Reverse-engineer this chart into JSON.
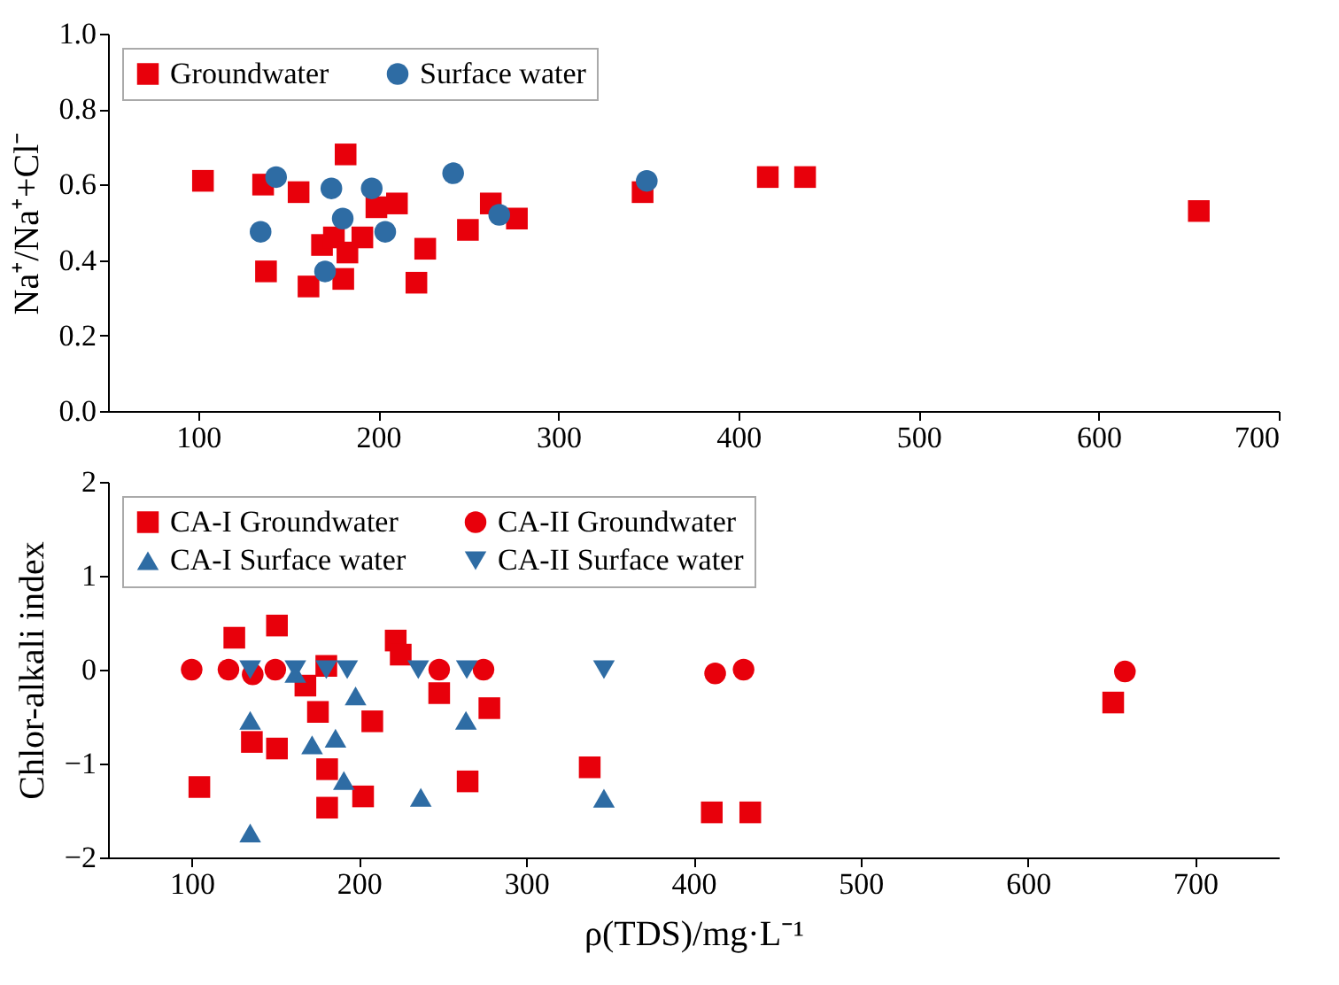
{
  "chart_data": [
    {
      "type": "scatter",
      "ylabel": "Na⁺/Na⁺+Cl⁻",
      "xlim": [
        50,
        700
      ],
      "xticks": [
        100,
        200,
        300,
        400,
        500,
        600,
        700
      ],
      "ylim": [
        0,
        1
      ],
      "yticks": [
        {
          "value": 0,
          "label": "0.0"
        },
        0.2,
        0.4,
        0.6,
        0.8,
        {
          "value": 1,
          "label": "1.0"
        }
      ],
      "legend": "top left",
      "series": [
        {
          "name": "Groundwater",
          "color": "#e8000b",
          "marker": "square",
          "x": [
            102.7,
            136.1,
            137.7,
            155.8,
            161.3,
            168.8,
            175.4,
            180.6,
            181.9,
            182.9,
            191.2,
            199.0,
            210.4,
            221.2,
            226.1,
            249.8,
            262.5,
            277.0,
            346.8,
            416.3,
            437.0,
            655.6
          ],
          "values": [
            0.61,
            0.6,
            0.37,
            0.58,
            0.33,
            0.44,
            0.46,
            0.35,
            0.68,
            0.42,
            0.46,
            0.54,
            0.55,
            0.34,
            0.43,
            0.48,
            0.55,
            0.51,
            0.58,
            0.62,
            0.62,
            0.53
          ]
        },
        {
          "name": "Surface water",
          "color": "#2e6ca4",
          "marker": "circle",
          "x": [
            134.7,
            143.3,
            170.5,
            174.0,
            180.3,
            196.4,
            203.9,
            241.6,
            267.2,
            349.1
          ],
          "values": [
            0.475,
            0.62,
            0.37,
            0.59,
            0.51,
            0.59,
            0.475,
            0.63,
            0.52,
            0.61
          ]
        }
      ]
    },
    {
      "type": "scatter",
      "xlabel": "ρ(TDS)/mg·L⁻¹",
      "ylabel": "Chlor-alkali index",
      "xlim": [
        50,
        750
      ],
      "xticks": [
        100,
        200,
        300,
        400,
        500,
        600,
        700
      ],
      "ylim": [
        -2,
        2
      ],
      "yticks": [
        -2,
        -1,
        0,
        1,
        2
      ],
      "legend": "top left",
      "series": [
        {
          "name": "CA-I Groundwater",
          "color": "#e8000b",
          "marker": "square",
          "x": [
            104.6,
            125.5,
            136,
            151,
            151,
            168,
            175.5,
            181,
            181,
            180.5,
            202.5,
            208,
            222,
            225,
            248,
            265,
            278,
            338,
            411,
            434,
            651
          ],
          "values": [
            -1.25,
            0.34,
            -0.77,
            0.47,
            -0.84,
            -0.17,
            -0.45,
            -1.06,
            -1.47,
            0.04,
            -1.35,
            -0.55,
            0.31,
            0.16,
            -0.25,
            -1.19,
            -0.41,
            -1.04,
            -1.52,
            -1.52,
            -0.35
          ]
        },
        {
          "name": "CA-II Groundwater",
          "color": "#e8000b",
          "marker": "circle",
          "x": [
            100,
            122,
            136.5,
            150,
            248,
            274.5,
            413,
            430,
            658
          ],
          "values": [
            0,
            0,
            -0.05,
            0,
            0,
            0,
            -0.04,
            0,
            -0.02
          ]
        },
        {
          "name": "CA-I Surface water",
          "color": "#2e6ca4",
          "marker": "triangle",
          "x": [
            135,
            135,
            162,
            172,
            186,
            191,
            198,
            237,
            264,
            346.5
          ],
          "values": [
            -0.54,
            -1.74,
            -0.04,
            -0.8,
            -0.73,
            -1.18,
            -0.28,
            -1.36,
            -0.54,
            -1.37
          ]
        },
        {
          "name": "CA-II Surface water",
          "color": "#2e6ca4",
          "marker": "triangle-down",
          "x": [
            135,
            162,
            180.5,
            193,
            235.5,
            264.5,
            346.5
          ],
          "values": [
            0,
            0,
            0,
            0,
            0,
            0,
            0
          ]
        }
      ]
    }
  ]
}
